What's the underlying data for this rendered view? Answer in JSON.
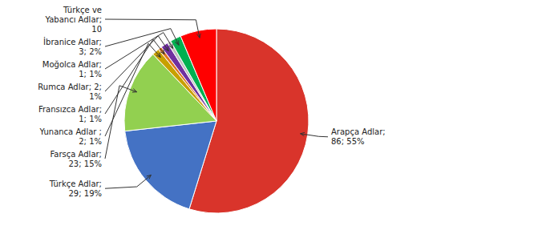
{
  "chart_data": {
    "type": "pie",
    "values": [
      86,
      29,
      23,
      2,
      1,
      2,
      1,
      3,
      10
    ],
    "value_labels": [
      "Arapça Adlar;\n86; 55%",
      "Türkçe Adlar;\n29; 19%",
      "Farsça Adlar;\n23; 15%",
      "Yunanca Adlar ;\n2; 1%",
      "Fransızca Adlar;\n1; 1%",
      "Rumca Adlar; 2;\n1%",
      "Moğolca Adlar;\n1; 1%",
      "İbranice Adlar;\n3; 2%",
      "Türkçe ve\nYabancı Adlar;\n10"
    ],
    "colors": [
      "#d9342b",
      "#4472c4",
      "#92d050",
      "#c8a000",
      "#e07820",
      "#7030a0",
      "#c0c0c0",
      "#00b050",
      "#ff0000"
    ],
    "data_labels": true
  }
}
